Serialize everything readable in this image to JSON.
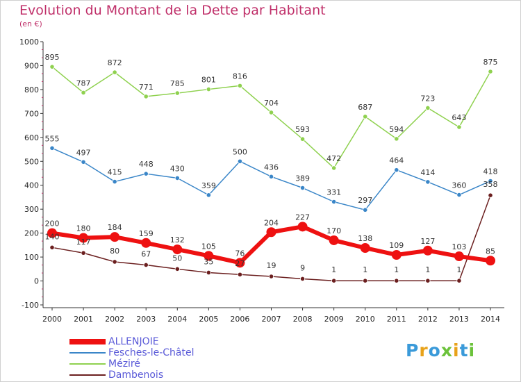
{
  "chart_data": {
    "type": "line",
    "title": "Evolution du Montant de la Dette par Habitant",
    "subtitle": "(en €)",
    "x": [
      "2000",
      "2001",
      "2002",
      "2003",
      "2004",
      "2005",
      "2006",
      "2007",
      "2008",
      "2009",
      "2010",
      "2011",
      "2012",
      "2013",
      "2014"
    ],
    "ylim": [
      -100,
      1000
    ],
    "yticks": [
      "-100",
      "0",
      "100",
      "200",
      "300",
      "400",
      "500",
      "600",
      "700",
      "800",
      "900",
      "1000"
    ],
    "grid": false,
    "legend_position": "bottom-left",
    "series": [
      {
        "name": "ALLENJOIE",
        "color": "#ee1111",
        "values": [
          200,
          180,
          184,
          159,
          132,
          105,
          76,
          204,
          227,
          170,
          138,
          109,
          127,
          103,
          85
        ]
      },
      {
        "name": "Fesches-le-Châtel",
        "color": "#3a86c8",
        "values": [
          555,
          497,
          415,
          448,
          430,
          359,
          500,
          436,
          389,
          331,
          297,
          464,
          414,
          360,
          418
        ]
      },
      {
        "name": "Méziré",
        "color": "#8fd14f",
        "values": [
          895,
          787,
          872,
          771,
          785,
          801,
          816,
          704,
          593,
          472,
          687,
          594,
          723,
          643,
          875
        ]
      },
      {
        "name": "Dambenois",
        "color": "#6b1f1f",
        "values": [
          140,
          117,
          80,
          67,
          50,
          35,
          27,
          19,
          9,
          1,
          1,
          1,
          1,
          1,
          358
        ]
      }
    ]
  },
  "logo": {
    "letters": [
      "P",
      "r",
      "o",
      "x",
      "i",
      "t",
      "i"
    ],
    "colors": [
      "#3a9ad9",
      "#e8a21a",
      "#3a9ad9",
      "#6bc23a",
      "#e8a21a",
      "#3a9ad9",
      "#6bc23a"
    ]
  }
}
